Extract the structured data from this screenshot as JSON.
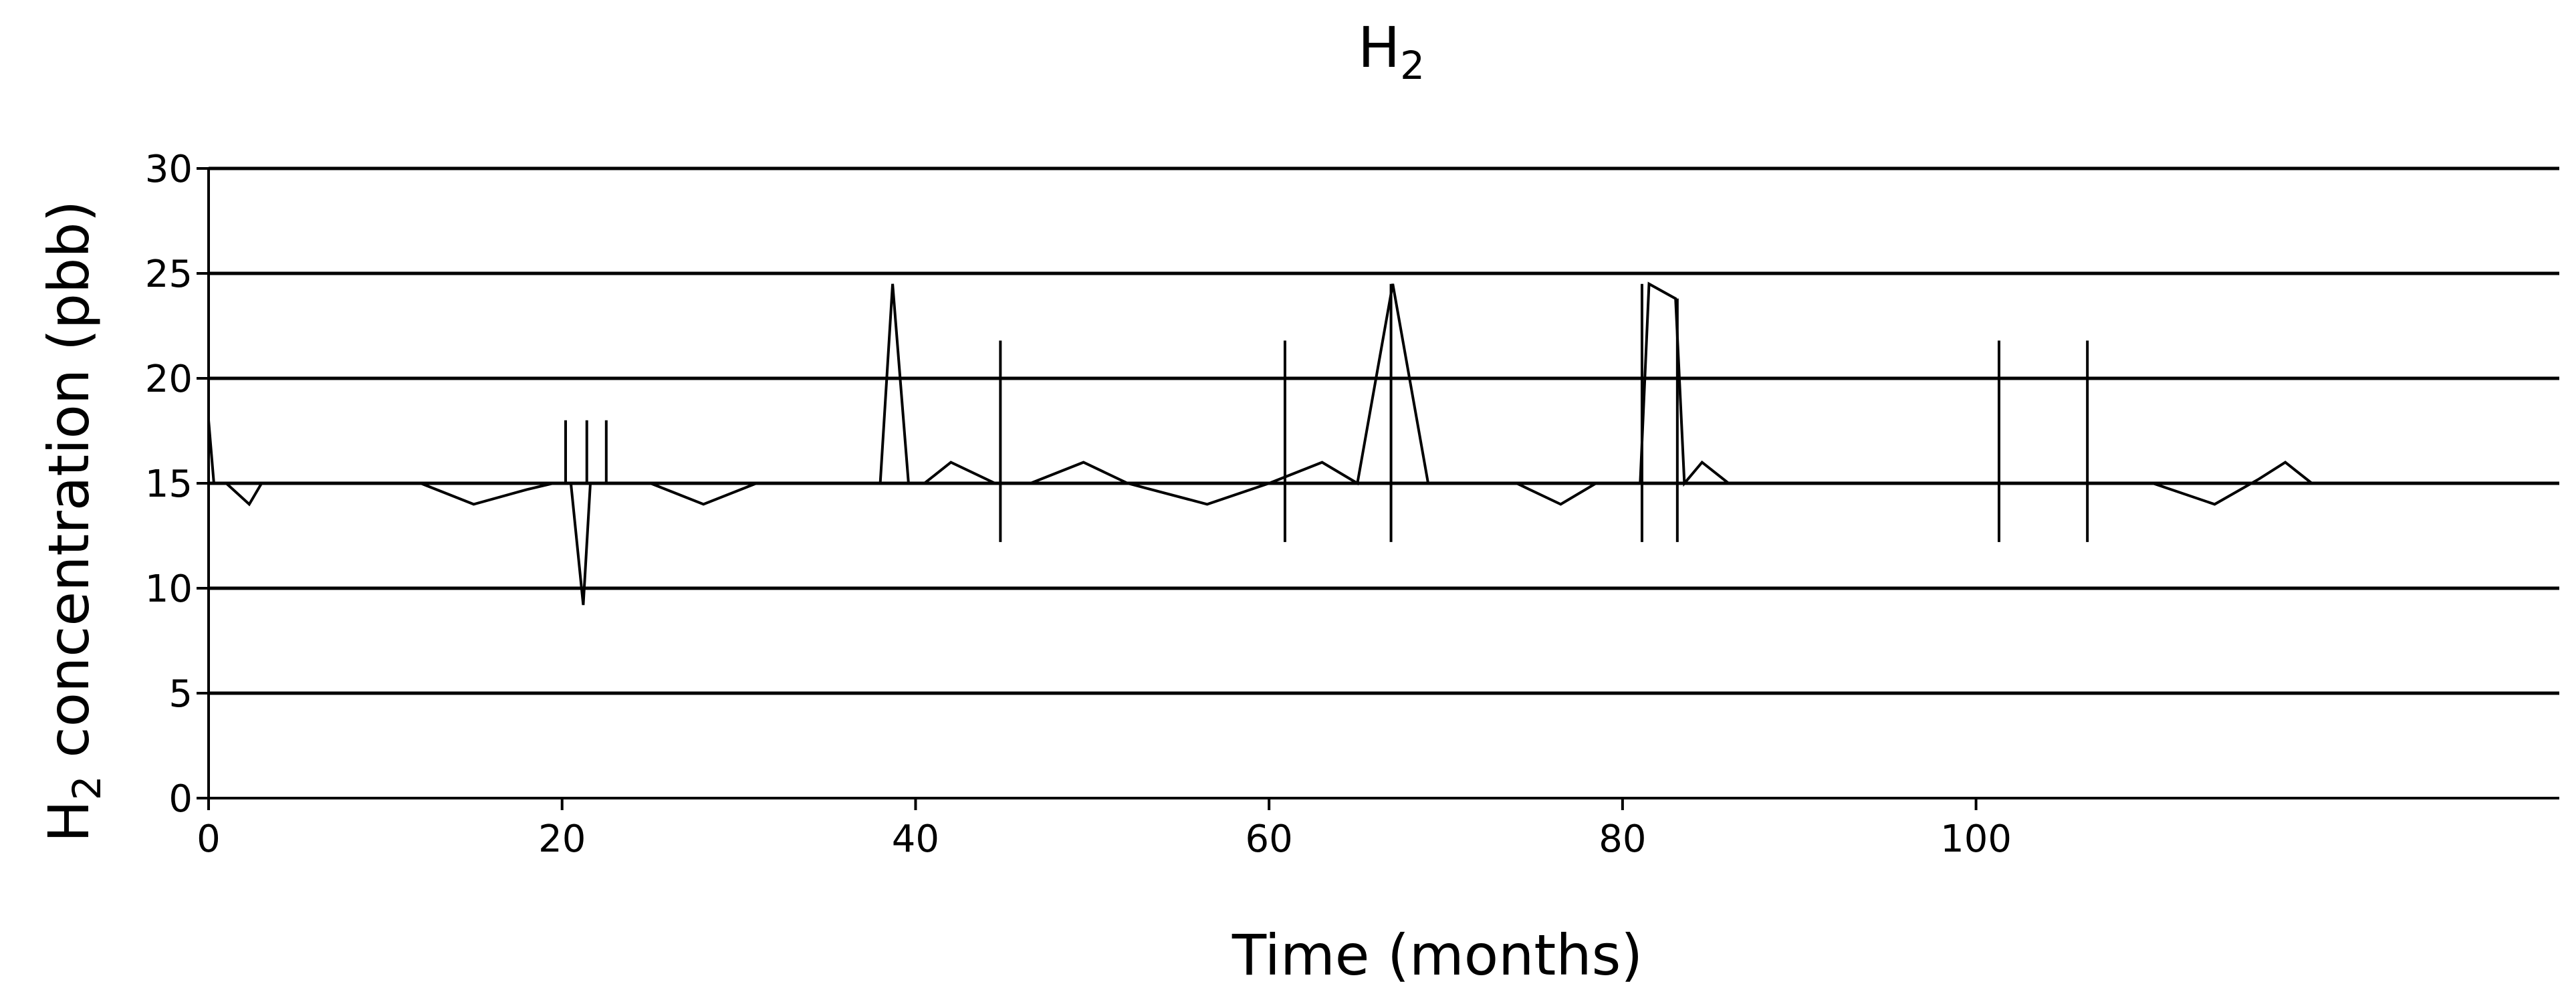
{
  "chart_data": {
    "type": "line",
    "title_main": "H",
    "title_sub": "2",
    "ylabel_main": "H",
    "ylabel_sub": "2",
    "ylabel_rest": " concentration (pbb)",
    "xlabel": "Time (months)",
    "xlim": [
      0,
      133
    ],
    "ylim": [
      0,
      30
    ],
    "x_ticks": [
      0,
      20,
      40,
      60,
      80,
      100
    ],
    "y_ticks": [
      0,
      5,
      10,
      15,
      20,
      25,
      30
    ],
    "grid": "horizontal",
    "series": [
      {
        "x": [
          0,
          0.3,
          1,
          2.3,
          3,
          12,
          15,
          18,
          19.5,
          20.5,
          21.2,
          21.6,
          22.2,
          25,
          28,
          31,
          38,
          38.7,
          39.6,
          40.5,
          42,
          44.5,
          45,
          46.5,
          49.5,
          52,
          56.5,
          60,
          63,
          65,
          67,
          69,
          74,
          76.5,
          78.5,
          81,
          81.5,
          83,
          83.5,
          84.5,
          86,
          110,
          113.5,
          116,
          117.5,
          119
        ],
        "y": [
          18,
          15,
          15,
          14,
          15,
          15,
          14,
          14.7,
          15,
          15,
          9.2,
          15,
          15,
          15,
          14,
          15,
          15,
          24.5,
          15,
          15,
          16,
          15,
          15,
          15,
          16,
          15,
          14,
          15,
          16,
          15,
          24.5,
          15,
          15,
          14,
          15,
          15,
          24.5,
          23.8,
          15,
          16,
          15,
          15,
          14,
          15.2,
          16,
          15
        ]
      }
    ],
    "spikes": [
      {
        "x": 20.2,
        "y0": 15,
        "y1": 18
      },
      {
        "x": 21.4,
        "y0": 15,
        "y1": 18
      },
      {
        "x": 22.5,
        "y0": 15,
        "y1": 18
      },
      {
        "x": 44.8,
        "y0": 12.2,
        "y1": 21.8
      },
      {
        "x": 60.9,
        "y0": 12.2,
        "y1": 21.8
      },
      {
        "x": 66.9,
        "y0": 12.2,
        "y1": 24.5
      },
      {
        "x": 81.1,
        "y0": 12.2,
        "y1": 24.5
      },
      {
        "x": 83.1,
        "y0": 12.2,
        "y1": 23.8
      },
      {
        "x": 101.3,
        "y0": 12.2,
        "y1": 21.8
      },
      {
        "x": 106.3,
        "y0": 12.2,
        "y1": 21.8
      }
    ]
  }
}
